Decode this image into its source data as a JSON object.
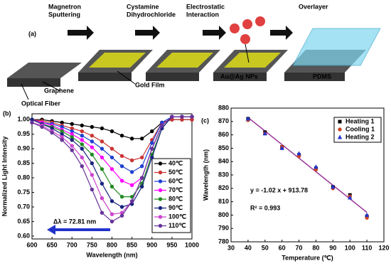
{
  "diagram": {
    "panel_label": "(a)",
    "steps": [
      "Magnetron",
      "Sputtering",
      "Cystamine",
      "Dihydrochloride",
      "Electrostatic",
      "Interaction",
      "Overlayer"
    ],
    "parts": [
      "Graphene",
      "Optical Fiber",
      "Gold Film",
      "Au@Ag NPs",
      "PDMS"
    ]
  },
  "chart_data": [
    {
      "type": "line",
      "panel_label": "(b)",
      "x_label": "Wavelength (nm)",
      "y_label": "Normalized Light Intensity",
      "annotation": "Δλ = 72.81 nm",
      "x": [
        600,
        625,
        650,
        675,
        700,
        725,
        750,
        775,
        800,
        825,
        850,
        875,
        900,
        925,
        950,
        975,
        1000
      ],
      "xlim": [
        600,
        1000
      ],
      "xticks": [
        600,
        650,
        700,
        750,
        800,
        850,
        900,
        950,
        1000
      ],
      "ylim": [
        0.59,
        1.02
      ],
      "yticks": [
        {
          "value": 0.6,
          "label": "0.60"
        },
        0.65,
        {
          "value": 0.7,
          "label": "0.70"
        },
        0.75,
        {
          "value": 0.8,
          "label": "0.80"
        },
        0.85,
        {
          "value": 0.9,
          "label": "0.90"
        },
        0.95,
        {
          "value": 1,
          "label": "1.00"
        }
      ],
      "series": [
        {
          "name": "40℃",
          "color": "#000000",
          "values": [
            1.0,
            1.0,
            0.995,
            0.99,
            0.985,
            0.98,
            0.975,
            0.97,
            0.96,
            0.945,
            0.935,
            0.935,
            0.96,
            0.99,
            1.0,
            1.0,
            1.0
          ]
        },
        {
          "name": "50℃",
          "color": "#cc3333",
          "values": [
            1.0,
            0.995,
            0.99,
            0.98,
            0.97,
            0.96,
            0.945,
            0.925,
            0.9,
            0.875,
            0.86,
            0.87,
            0.93,
            0.99,
            1.0,
            1.0,
            1.0
          ]
        },
        {
          "name": "60℃",
          "color": "#2040d0",
          "values": [
            1.0,
            0.99,
            0.985,
            0.975,
            0.96,
            0.945,
            0.925,
            0.9,
            0.87,
            0.84,
            0.82,
            0.84,
            0.92,
            0.99,
            1.01,
            1.01,
            1.01
          ]
        },
        {
          "name": "70℃",
          "color": "#ff00ff",
          "values": [
            1.0,
            0.99,
            0.98,
            0.965,
            0.95,
            0.93,
            0.905,
            0.87,
            0.83,
            0.79,
            0.775,
            0.8,
            0.9,
            0.98,
            1.01,
            1.01,
            1.01
          ]
        },
        {
          "name": "80℃",
          "color": "#228b22",
          "values": [
            1.0,
            0.985,
            0.975,
            0.96,
            0.94,
            0.915,
            0.88,
            0.83,
            0.77,
            0.735,
            0.735,
            0.78,
            0.88,
            0.97,
            1.01,
            1.01,
            1.01
          ]
        },
        {
          "name": "90℃",
          "color": "#1a237e",
          "values": [
            1.0,
            0.985,
            0.97,
            0.95,
            0.93,
            0.9,
            0.85,
            0.78,
            0.72,
            0.7,
            0.71,
            0.77,
            0.87,
            0.97,
            1.01,
            1.01,
            1.01
          ]
        },
        {
          "name": "100℃",
          "color": "#cc44cc",
          "values": [
            0.99,
            0.98,
            0.96,
            0.94,
            0.91,
            0.87,
            0.81,
            0.73,
            0.675,
            0.68,
            0.72,
            0.8,
            0.9,
            0.98,
            1.01,
            1.01,
            1.01
          ]
        },
        {
          "name": "110℃",
          "color": "#663399",
          "values": [
            0.99,
            0.975,
            0.955,
            0.93,
            0.895,
            0.84,
            0.76,
            0.68,
            0.65,
            0.67,
            0.72,
            0.8,
            0.9,
            0.98,
            1.01,
            1.01,
            1.01
          ]
        }
      ]
    },
    {
      "type": "scatter",
      "panel_label": "(c)",
      "x_label": "Temperature (℃)",
      "y_label": "Wavelength (nm)",
      "equation": "y = -1.02 x + 913.78",
      "r_squared": "R² = 0.993",
      "x": [
        40,
        50,
        60,
        70,
        80,
        90,
        100,
        110
      ],
      "xlim": [
        30,
        120
      ],
      "xticks": [
        30,
        40,
        50,
        60,
        70,
        80,
        90,
        100,
        110,
        120
      ],
      "ylim": [
        780,
        880
      ],
      "yticks": [
        780,
        790,
        800,
        810,
        820,
        830,
        840,
        850,
        860,
        870,
        880
      ],
      "series": [
        {
          "name": "Heating  1",
          "color": "#000000",
          "marker": "square",
          "values": [
            872,
            862,
            851,
            845,
            835,
            821,
            815,
            799
          ]
        },
        {
          "name": "Cooling  1",
          "color": "#cc4422",
          "marker": "circle",
          "values": [
            871,
            861,
            851,
            844,
            834,
            820,
            814,
            798
          ]
        },
        {
          "name": "Heating  2",
          "color": "#2233cc",
          "marker": "triangle",
          "values": [
            872,
            861,
            850,
            846,
            836,
            821,
            813,
            800
          ]
        }
      ],
      "fit_line": {
        "color": "#993399",
        "x": [
          40,
          110
        ],
        "values": [
          873,
          802
        ]
      }
    }
  ]
}
